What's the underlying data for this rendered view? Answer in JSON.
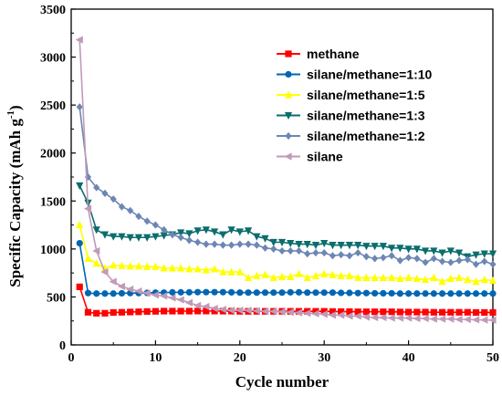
{
  "chart_data": {
    "type": "line",
    "xlabel": "Cycle number",
    "ylabel": "Specific Capacity (mAh g",
    "ylabel_sup": "-1",
    "ylabel_close": ")",
    "xlim": [
      0,
      50
    ],
    "ylim": [
      0,
      3500
    ],
    "xticks": [
      0,
      10,
      20,
      30,
      40,
      50
    ],
    "yticks": [
      0,
      500,
      1000,
      1500,
      2000,
      2500,
      3000,
      3500
    ],
    "grid": false,
    "legend_position": "top-right",
    "series": [
      {
        "name": "methane",
        "color": "#ff0000",
        "marker": "square",
        "x": [
          1,
          2,
          3,
          4,
          5,
          6,
          7,
          8,
          9,
          10,
          11,
          12,
          13,
          14,
          15,
          16,
          17,
          18,
          19,
          20,
          21,
          22,
          23,
          24,
          25,
          26,
          27,
          28,
          29,
          30,
          31,
          32,
          33,
          34,
          35,
          36,
          37,
          38,
          39,
          40,
          41,
          42,
          43,
          44,
          45,
          46,
          47,
          48,
          49,
          50
        ],
        "y": [
          605,
          340,
          330,
          330,
          338,
          340,
          343,
          345,
          348,
          350,
          352,
          352,
          352,
          352,
          353,
          353,
          353,
          352,
          352,
          350,
          350,
          350,
          350,
          350,
          350,
          350,
          350,
          350,
          350,
          350,
          348,
          347,
          347,
          345,
          345,
          345,
          345,
          345,
          343,
          342,
          342,
          342,
          340,
          340,
          340,
          340,
          340,
          338,
          338,
          338
        ]
      },
      {
        "name": "silane/methane=1:10",
        "color": "#0066b3",
        "marker": "circle",
        "x": [
          1,
          2,
          3,
          4,
          5,
          6,
          7,
          8,
          9,
          10,
          11,
          12,
          13,
          14,
          15,
          16,
          17,
          18,
          19,
          20,
          21,
          22,
          23,
          24,
          25,
          26,
          27,
          28,
          29,
          30,
          31,
          32,
          33,
          34,
          35,
          36,
          37,
          38,
          39,
          40,
          41,
          42,
          43,
          44,
          45,
          46,
          47,
          48,
          49,
          50
        ],
        "y": [
          1060,
          540,
          535,
          535,
          535,
          538,
          540,
          540,
          542,
          545,
          545,
          548,
          548,
          548,
          550,
          550,
          550,
          550,
          548,
          545,
          545,
          545,
          545,
          545,
          545,
          548,
          548,
          545,
          545,
          545,
          545,
          542,
          542,
          540,
          540,
          538,
          538,
          538,
          535,
          535,
          535,
          535,
          535,
          535,
          535,
          535,
          535,
          535,
          535,
          535
        ]
      },
      {
        "name": "silane/methane=1:5",
        "color": "#ffff00",
        "marker": "triangle-up",
        "x": [
          1,
          2,
          3,
          4,
          5,
          6,
          7,
          8,
          9,
          10,
          11,
          12,
          13,
          14,
          15,
          16,
          17,
          18,
          19,
          20,
          21,
          22,
          23,
          24,
          25,
          26,
          27,
          28,
          29,
          30,
          31,
          32,
          33,
          34,
          35,
          36,
          37,
          38,
          39,
          40,
          41,
          42,
          43,
          44,
          45,
          46,
          47,
          48,
          49,
          50
        ],
        "y": [
          1250,
          900,
          850,
          800,
          830,
          825,
          820,
          820,
          815,
          815,
          800,
          800,
          800,
          790,
          790,
          780,
          790,
          760,
          760,
          760,
          700,
          720,
          730,
          700,
          710,
          710,
          740,
          700,
          720,
          740,
          730,
          720,
          720,
          700,
          700,
          700,
          700,
          700,
          690,
          700,
          690,
          680,
          700,
          660,
          690,
          700,
          680,
          660,
          680,
          670
        ]
      },
      {
        "name": "silane/methane=1:3",
        "color": "#0b6d6d",
        "marker": "triangle-down",
        "x": [
          1,
          2,
          3,
          4,
          5,
          6,
          7,
          8,
          9,
          10,
          11,
          12,
          13,
          14,
          15,
          16,
          17,
          18,
          19,
          20,
          21,
          22,
          23,
          24,
          25,
          26,
          27,
          28,
          29,
          30,
          31,
          32,
          33,
          34,
          35,
          36,
          37,
          38,
          39,
          40,
          41,
          42,
          43,
          44,
          45,
          46,
          47,
          48,
          49,
          50
        ],
        "y": [
          1660,
          1480,
          1200,
          1150,
          1130,
          1130,
          1120,
          1120,
          1120,
          1130,
          1140,
          1150,
          1170,
          1160,
          1190,
          1200,
          1180,
          1150,
          1200,
          1180,
          1190,
          1130,
          1110,
          1070,
          1070,
          1060,
          1050,
          1050,
          1040,
          1060,
          1040,
          1040,
          1040,
          1040,
          1030,
          1030,
          1030,
          1010,
          1010,
          1000,
          1000,
          980,
          980,
          960,
          980,
          960,
          920,
          940,
          950,
          950
        ]
      },
      {
        "name": "silane/methane=1:2",
        "color": "#6d86b5",
        "marker": "diamond",
        "x": [
          1,
          2,
          3,
          4,
          5,
          6,
          7,
          8,
          9,
          10,
          11,
          12,
          13,
          14,
          15,
          16,
          17,
          18,
          19,
          20,
          21,
          22,
          23,
          24,
          25,
          26,
          27,
          28,
          29,
          30,
          31,
          32,
          33,
          34,
          35,
          36,
          37,
          38,
          39,
          40,
          41,
          42,
          43,
          44,
          45,
          46,
          47,
          48,
          49,
          50
        ],
        "y": [
          2480,
          1750,
          1640,
          1580,
          1520,
          1440,
          1400,
          1340,
          1290,
          1250,
          1200,
          1150,
          1120,
          1090,
          1070,
          1050,
          1050,
          1040,
          1040,
          1050,
          1050,
          1040,
          1010,
          1000,
          980,
          980,
          980,
          950,
          960,
          960,
          930,
          940,
          930,
          960,
          920,
          900,
          910,
          930,
          880,
          910,
          900,
          860,
          900,
          870,
          860,
          880,
          890,
          840,
          870,
          840
        ]
      },
      {
        "name": "silane",
        "color": "#c09ab8",
        "marker": "triangle-left",
        "x": [
          1,
          2,
          3,
          4,
          5,
          6,
          7,
          8,
          9,
          10,
          11,
          12,
          13,
          14,
          15,
          16,
          17,
          18,
          19,
          20,
          21,
          22,
          23,
          24,
          25,
          26,
          27,
          28,
          29,
          30,
          31,
          32,
          33,
          34,
          35,
          36,
          37,
          38,
          39,
          40,
          41,
          42,
          43,
          44,
          45,
          46,
          47,
          48,
          49,
          50
        ],
        "y": [
          3180,
          1420,
          980,
          760,
          660,
          610,
          580,
          560,
          540,
          520,
          510,
          490,
          470,
          440,
          410,
          400,
          380,
          370,
          360,
          360,
          360,
          355,
          350,
          350,
          345,
          340,
          335,
          330,
          325,
          320,
          310,
          310,
          300,
          300,
          290,
          285,
          285,
          280,
          280,
          280,
          275,
          275,
          270,
          270,
          270,
          265,
          265,
          262,
          260,
          258
        ]
      }
    ]
  }
}
